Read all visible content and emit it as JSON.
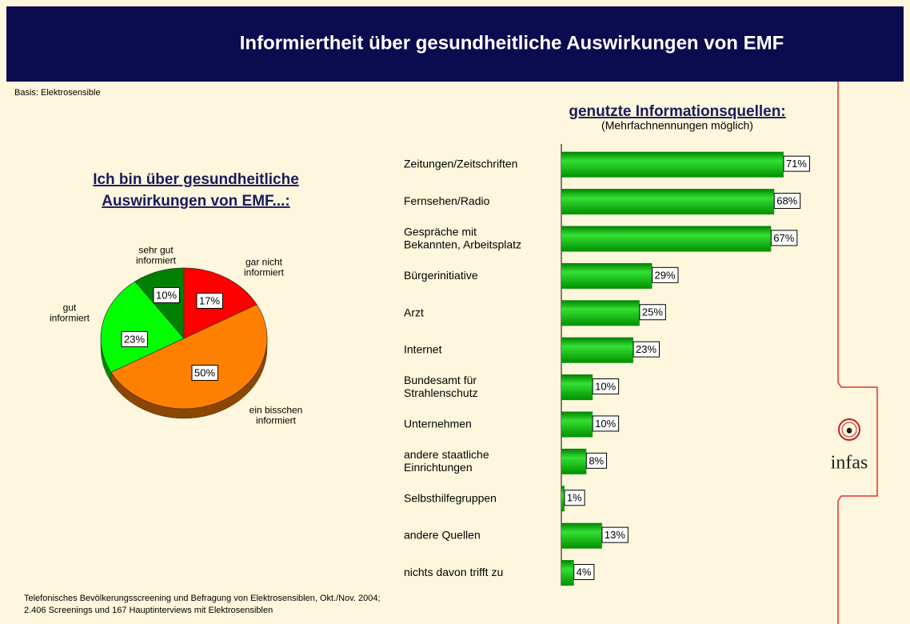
{
  "header": {
    "title": "Informiertheit über gesundheitliche Auswirkungen von EMF"
  },
  "basis": "Basis: Elektrosensible",
  "footer": [
    "Telefonisches Bevölkerungsscreening und Befragung von Elektrosensiblen, Okt./Nov. 2004;",
    "2.406 Screenings und 167 Hauptinterviews mit Elektrosensiblen"
  ],
  "logo": "infas",
  "chart_data": [
    {
      "type": "pie",
      "title": [
        "Ich bin über gesundheitliche",
        "Auswirkungen von EMF...:"
      ],
      "categories": [
        "gar nicht\ninformiert",
        "ein bisschen\ninformiert",
        "gut\ninformiert",
        "sehr gut\ninformiert"
      ],
      "values": [
        17,
        50,
        23,
        10
      ],
      "value_labels": [
        "17%",
        "50%",
        "23%",
        "10%"
      ],
      "colors": [
        "#ff0000",
        "#ff8000",
        "#00ff00",
        "#008000"
      ]
    },
    {
      "type": "hbar",
      "title": "genutzte Informationsquellen:",
      "subtitle": "(Mehrfachnennungen möglich)",
      "categories": [
        "Zeitungen/Zeitschriften",
        "Fernsehen/Radio",
        "Gespräche mit\nBekannten, Arbeitsplatz",
        "Bürgerinitiative",
        "Arzt",
        "Internet",
        "Bundesamt für\nStrahlenschutz",
        "Unternehmen",
        "andere staatliche\nEinrichtungen",
        "Selbsthilfegruppen",
        "andere Quellen",
        "nichts davon trifft zu"
      ],
      "values": [
        71,
        68,
        67,
        29,
        25,
        23,
        10,
        10,
        8,
        1,
        13,
        4
      ],
      "value_labels": [
        "71%",
        "68%",
        "67%",
        "29%",
        "25%",
        "23%",
        "10%",
        "10%",
        "8%",
        "1%",
        "13%",
        "4%"
      ],
      "color": "#00b000",
      "xlim": [
        0,
        100
      ]
    }
  ]
}
